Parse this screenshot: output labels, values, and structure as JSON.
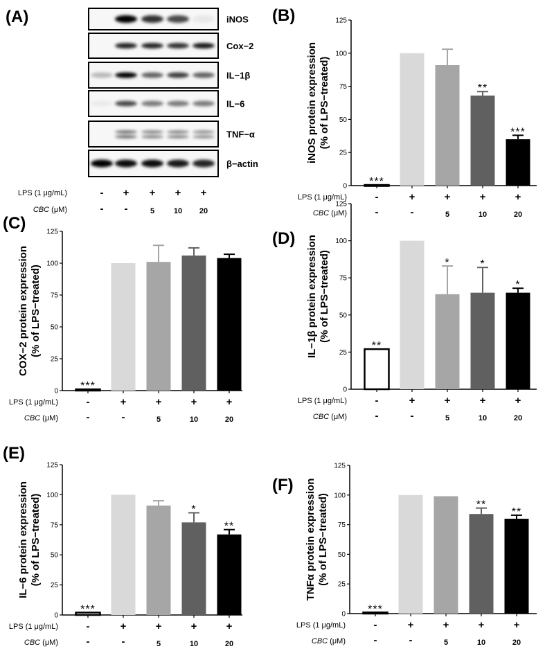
{
  "figure_labels": {
    "A": "(A)",
    "B": "(B)",
    "C": "(C)",
    "D": "(D)",
    "E": "(E)",
    "F": "(F)"
  },
  "treatments": {
    "lps_label_main": "LPS (1 μg/mL)",
    "cbc_label_italic": "CBC",
    "cbc_label_unit": " (μM)",
    "lps": [
      "-",
      "+",
      "+",
      "+",
      "+"
    ],
    "cbc": [
      "-",
      "-",
      "5",
      "10",
      "20"
    ]
  },
  "western_blot": {
    "proteins": [
      {
        "name": "iNOS",
        "intensity": [
          0.0,
          1.0,
          0.8,
          0.7,
          0.06
        ]
      },
      {
        "name": "Cox−2",
        "intensity": [
          0.0,
          0.85,
          0.85,
          0.8,
          0.9
        ]
      },
      {
        "name": "IL−1β",
        "intensity": [
          0.25,
          1.0,
          0.6,
          0.75,
          0.6
        ]
      },
      {
        "name": "IL−6",
        "intensity": [
          0.05,
          0.7,
          0.5,
          0.5,
          0.5
        ]
      },
      {
        "name": "TNF−α",
        "intensity": [
          0.0,
          0.6,
          0.5,
          0.5,
          0.45
        ]
      },
      {
        "name": "β−actin",
        "intensity": [
          1.0,
          0.95,
          0.95,
          0.9,
          0.85
        ]
      }
    ]
  },
  "colors": [
    "#ffffff",
    "#d9d9d9",
    "#a6a6a6",
    "#606060",
    "#000000"
  ],
  "chart_data": [
    {
      "panel": "B",
      "type": "bar",
      "ylabel": [
        "iNOS protein expression",
        "(% of LPS−treated)"
      ],
      "ylim": [
        0,
        125
      ],
      "yticks": [
        "0",
        "25",
        "50",
        "75",
        "100",
        "125"
      ],
      "values": [
        0.5,
        100,
        91,
        68,
        35
      ],
      "errors": [
        0,
        0,
        12,
        3,
        3
      ],
      "significance": [
        "***",
        "",
        "",
        "**",
        "***"
      ]
    },
    {
      "panel": "C",
      "type": "bar",
      "ylabel": [
        "COX−2 protein expression",
        "(% of LPS−treated)"
      ],
      "ylim": [
        0,
        125
      ],
      "yticks": [
        "0",
        "25",
        "50",
        "75",
        "100",
        "125"
      ],
      "values": [
        1,
        100,
        101,
        106,
        104
      ],
      "errors": [
        0,
        0,
        13,
        6,
        3
      ],
      "significance": [
        "***",
        "",
        "",
        "",
        ""
      ]
    },
    {
      "panel": "D",
      "type": "bar",
      "ylabel": [
        "IL−1β protein expression",
        "(% of LPS−treated)"
      ],
      "ylim": [
        0,
        125
      ],
      "yticks": [
        "0",
        "25",
        "50",
        "75",
        "100",
        "125"
      ],
      "values": [
        27,
        100,
        64,
        65,
        65
      ],
      "errors": [
        0,
        0,
        19,
        17,
        3
      ],
      "significance": [
        "**",
        "",
        "*",
        "*",
        "*"
      ]
    },
    {
      "panel": "E",
      "type": "bar",
      "ylabel": [
        "IL−6  protein expression",
        "(% of LPS−treated)"
      ],
      "ylim": [
        0,
        125
      ],
      "yticks": [
        "0",
        "25",
        "50",
        "75",
        "100",
        "125"
      ],
      "values": [
        2,
        100,
        91,
        77,
        67
      ],
      "errors": [
        0,
        0,
        4,
        8,
        4
      ],
      "significance": [
        "***",
        "",
        "",
        "*",
        "**"
      ]
    },
    {
      "panel": "F",
      "type": "bar",
      "ylabel": [
        "TNFα protein expression",
        "(% of LPS−treated)"
      ],
      "ylim": [
        0,
        125
      ],
      "yticks": [
        "0",
        "25",
        "50",
        "75",
        "100",
        "125"
      ],
      "values": [
        1,
        100,
        99,
        84,
        80
      ],
      "errors": [
        0,
        0,
        0,
        5,
        3
      ],
      "significance": [
        "***",
        "",
        "",
        "**",
        "**"
      ]
    }
  ]
}
